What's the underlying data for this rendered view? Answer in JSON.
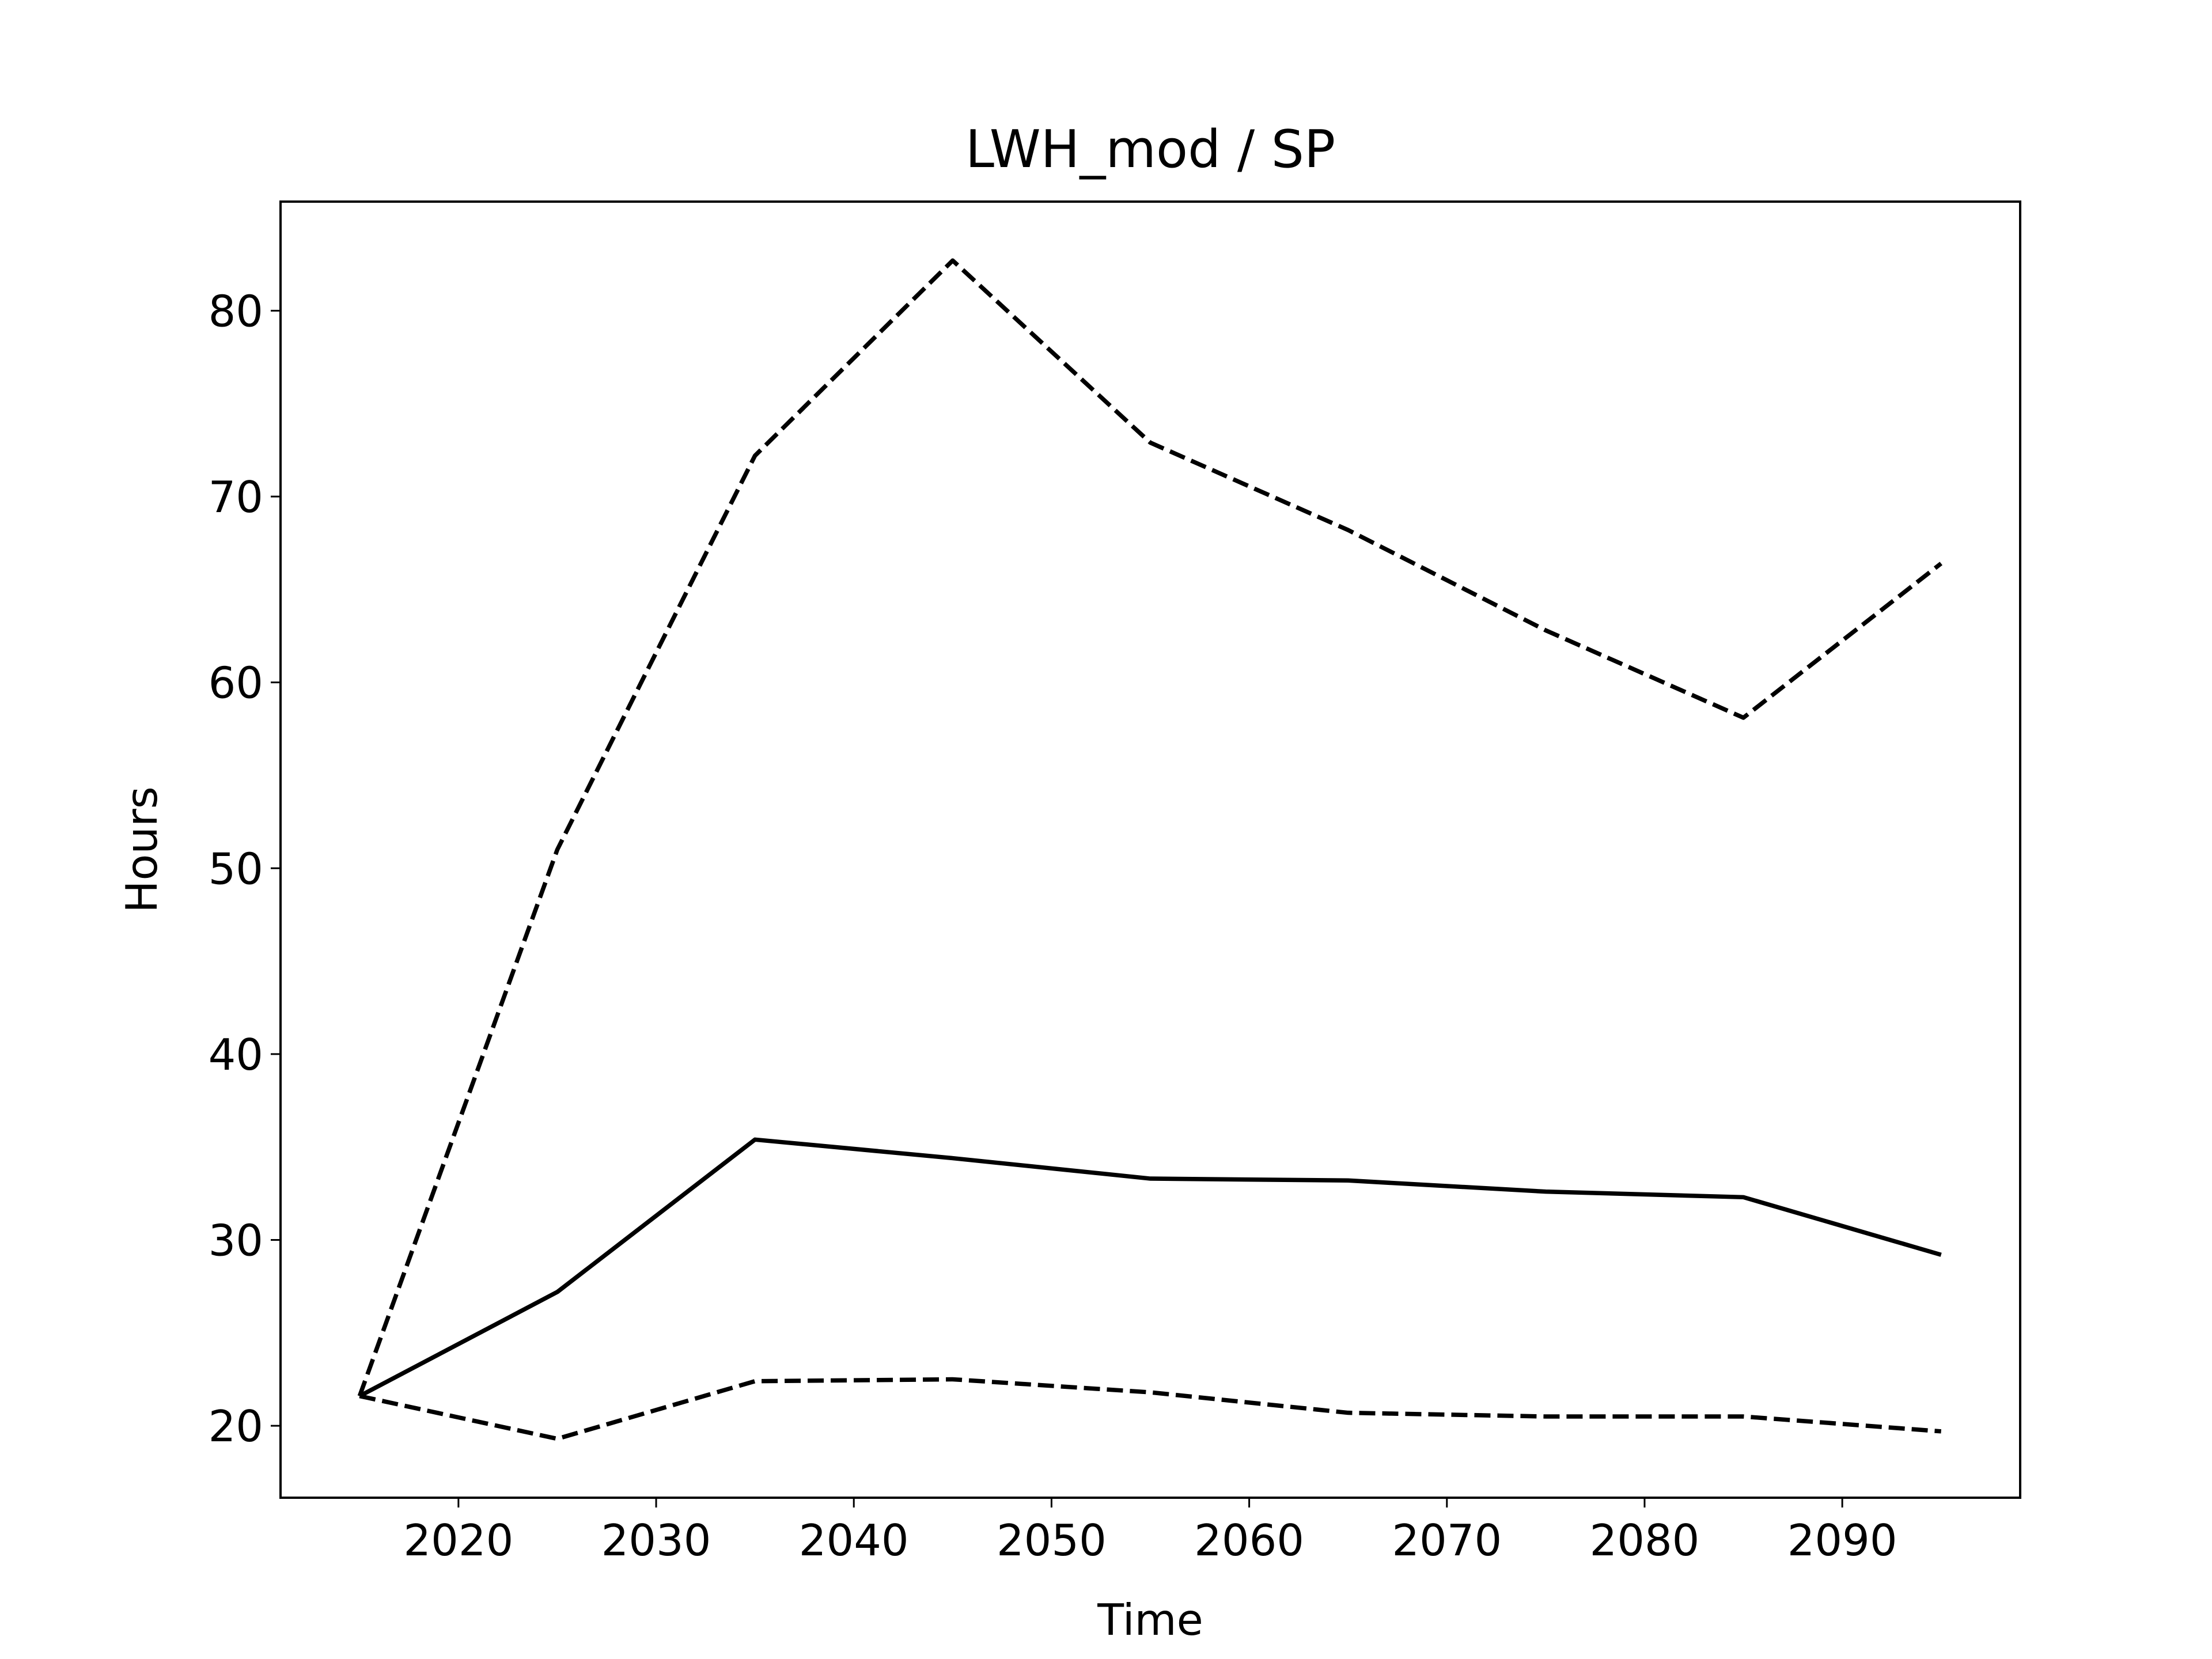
{
  "chart_data": {
    "type": "line",
    "title": "LWH_mod / SP",
    "xlabel": "Time",
    "ylabel": "Hours",
    "x": [
      2015,
      2025,
      2035,
      2045,
      2055,
      2065,
      2075,
      2085,
      2095
    ],
    "series": [
      {
        "color": "#000000",
        "linestyle": "solid",
        "values": [
          21.6,
          27.2,
          35.4,
          34.4,
          33.3,
          33.2,
          32.6,
          32.3,
          29.2
        ]
      },
      {
        "color": "#000000",
        "linestyle": "dashed",
        "values": [
          21.6,
          51.0,
          72.2,
          82.7,
          72.9,
          68.2,
          62.8,
          58.1,
          66.4
        ]
      },
      {
        "color": "#000000",
        "linestyle": "dashed",
        "values": [
          21.6,
          19.3,
          22.4,
          22.5,
          21.8,
          20.7,
          20.5,
          20.5,
          19.7
        ]
      }
    ],
    "xlim": [
      2011,
      2099
    ],
    "xticks": [
      2020,
      2030,
      2040,
      2050,
      2060,
      2070,
      2080,
      2090
    ],
    "ylim": [
      16.13,
      85.87
    ],
    "yticks": [
      20,
      30,
      40,
      50,
      60,
      70,
      80
    ],
    "grid": false
  }
}
